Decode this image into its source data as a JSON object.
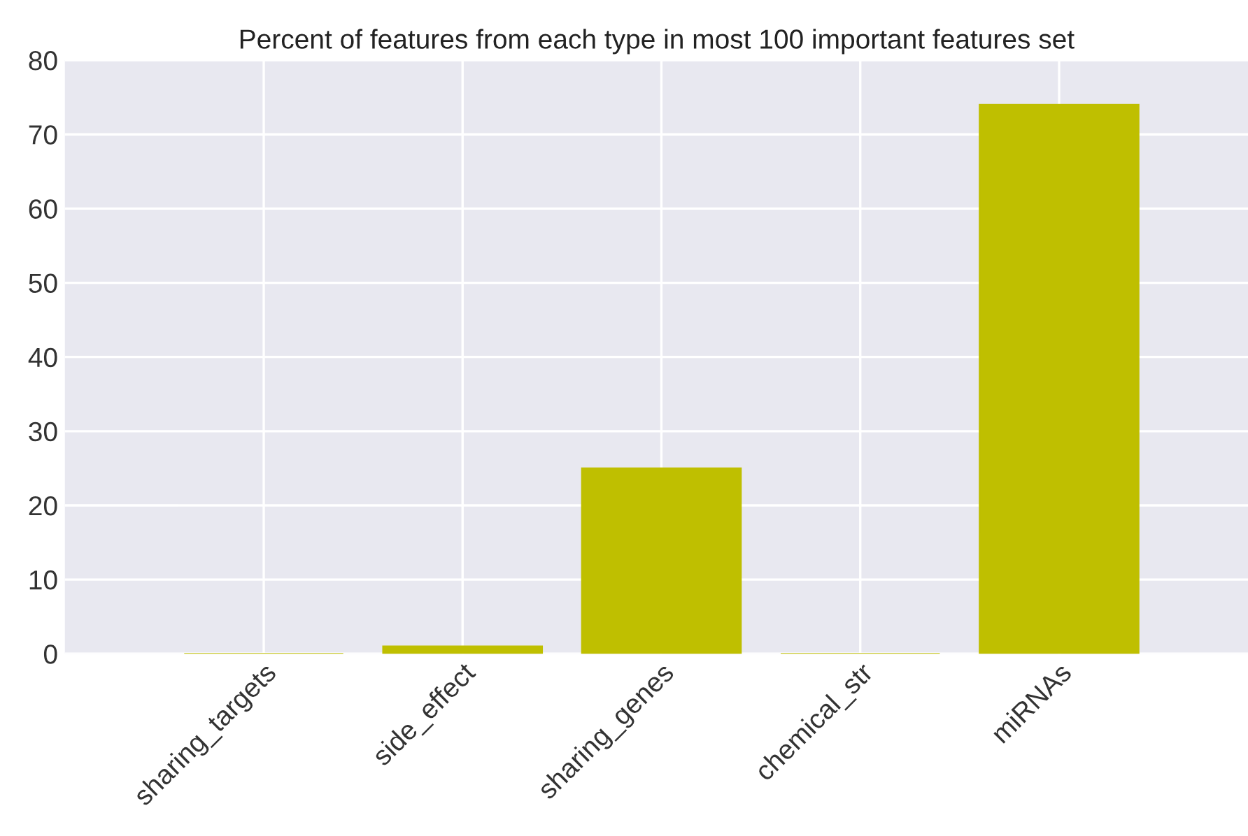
{
  "chart_data": {
    "type": "bar",
    "title": "Percent of features from each type in most 100 important features set",
    "categories": [
      "sharing_targets",
      "side_effect",
      "sharing_genes",
      "chemical_str",
      "miRNAs"
    ],
    "values": [
      0,
      1,
      25,
      0,
      74
    ],
    "color": "#bfbf00",
    "ylim": [
      0,
      80
    ],
    "yticks": [
      0,
      10,
      20,
      30,
      40,
      50,
      60,
      70,
      80
    ],
    "grid": true
  }
}
